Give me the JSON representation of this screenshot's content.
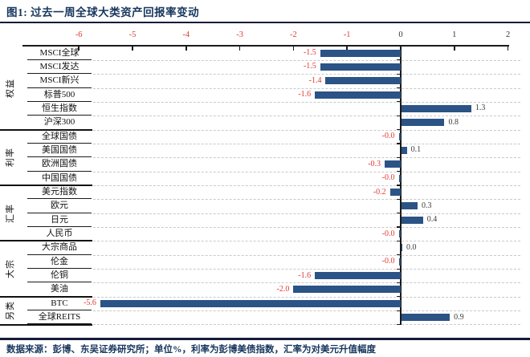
{
  "title": "图1:  过去一周全球大类资产回报率变动",
  "source_note": "数据来源：彭博、东吴证券研究所；单位%，利率为彭博美债指数，汇率为对美元升值幅度",
  "colors": {
    "bar": "#2b5385",
    "negative_label": "#e03a33",
    "positive_label": "#3c3c3c",
    "title_navy": "#17365d",
    "rule": "#141b38",
    "gridline": "#c9c9c9"
  },
  "chart_data": {
    "type": "bar",
    "orientation": "horizontal",
    "title": "过去一周全球大类资产回报率变动",
    "unit": "%",
    "xlim": [
      -6,
      2
    ],
    "x_ticks": [
      -6,
      -5,
      -4,
      -3,
      -2,
      -1,
      0,
      1,
      2
    ],
    "grid": "dashed horizontal per-row",
    "groups": [
      {
        "name": "权益",
        "items": [
          {
            "label": "MSCI全球",
            "value": -1.5,
            "display": "-1.5"
          },
          {
            "label": "MSCI发达",
            "value": -1.5,
            "display": "-1.5"
          },
          {
            "label": "MSCI新兴",
            "value": -1.4,
            "display": "-1.4"
          },
          {
            "label": "标普500",
            "value": -1.6,
            "display": "-1.6"
          },
          {
            "label": "恒生指数",
            "value": 1.3,
            "display": "1.3"
          },
          {
            "label": "沪深300",
            "value": 0.8,
            "display": "0.8"
          }
        ]
      },
      {
        "name": "利率",
        "items": [
          {
            "label": "全球国债",
            "value": -0.02,
            "display": "-0.0"
          },
          {
            "label": "美国国债",
            "value": 0.1,
            "display": "0.1"
          },
          {
            "label": "欧洲国债",
            "value": -0.3,
            "display": "-0.3"
          },
          {
            "label": "中国国债",
            "value": -0.02,
            "display": "-0.0"
          }
        ]
      },
      {
        "name": "汇率",
        "items": [
          {
            "label": "美元指数",
            "value": -0.2,
            "display": "-0.2"
          },
          {
            "label": "欧元",
            "value": 0.3,
            "display": "0.3"
          },
          {
            "label": "日元",
            "value": 0.4,
            "display": "0.4"
          },
          {
            "label": "人民币",
            "value": -0.02,
            "display": "-0.0"
          }
        ]
      },
      {
        "name": "大宗",
        "items": [
          {
            "label": "大宗商品",
            "value": 0.01,
            "display": "0.0"
          },
          {
            "label": "伦金",
            "value": -0.02,
            "display": "-0.0"
          },
          {
            "label": "伦铜",
            "value": -1.6,
            "display": "-1.6"
          },
          {
            "label": "美油",
            "value": -2.0,
            "display": "-2.0"
          }
        ]
      },
      {
        "name": "另类",
        "items": [
          {
            "label": "BTC",
            "value": -5.6,
            "display": "-5.6"
          },
          {
            "label": "全球REITS",
            "value": 0.9,
            "display": "0.9"
          }
        ]
      }
    ]
  }
}
